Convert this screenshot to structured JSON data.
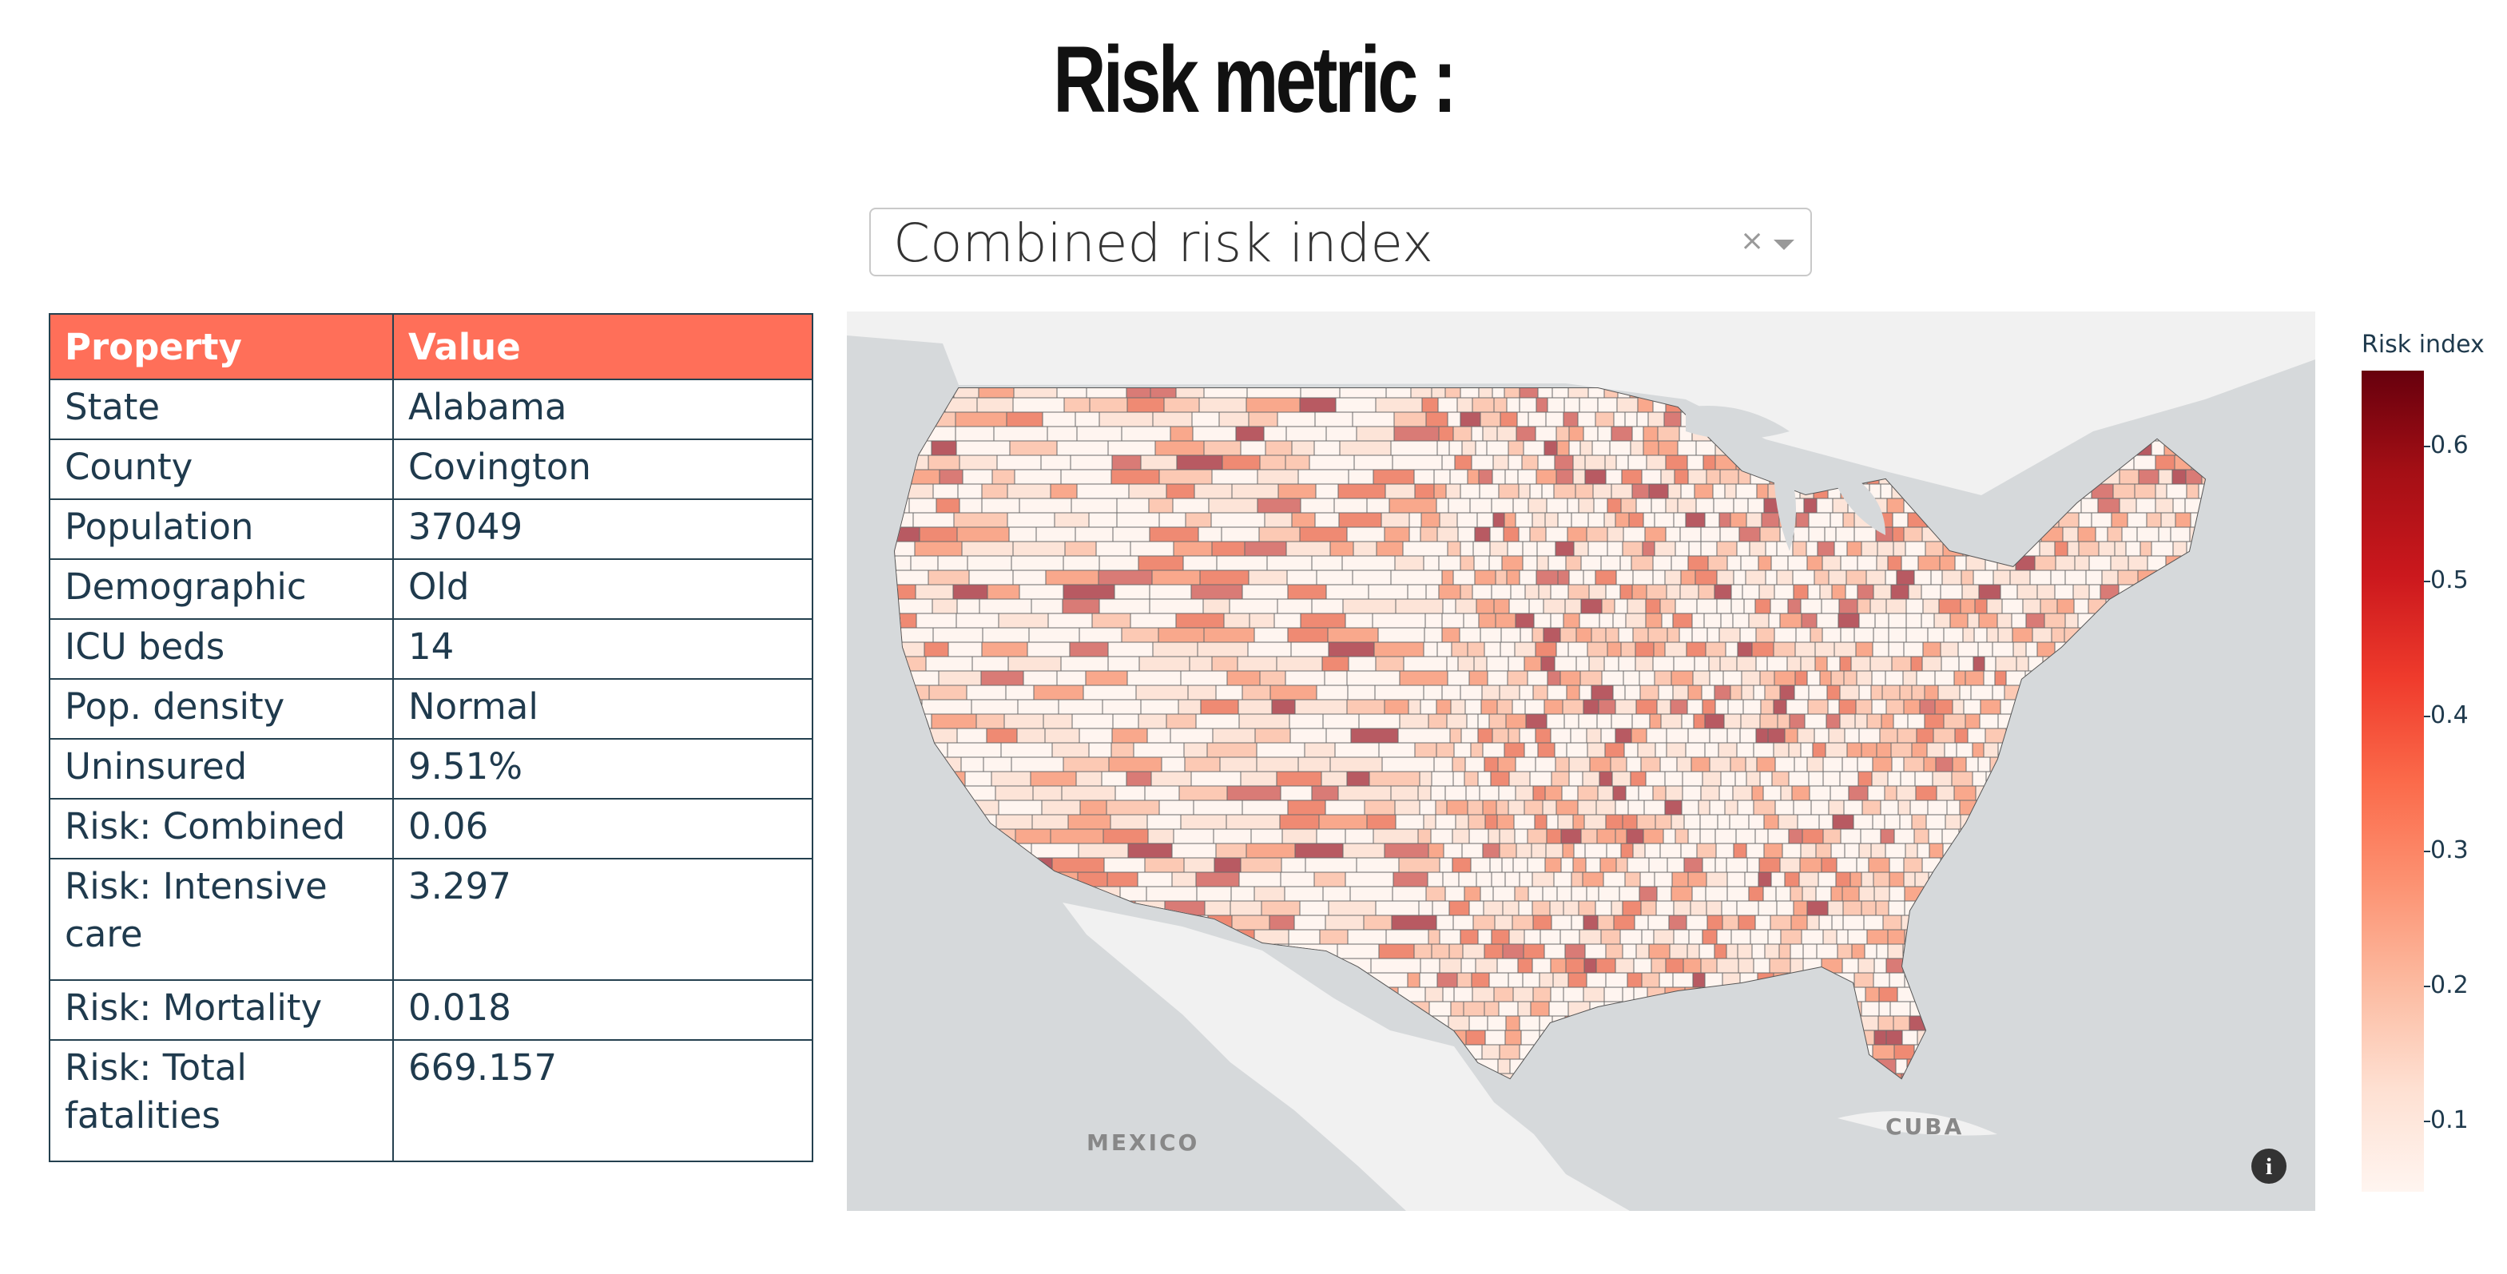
{
  "header": {
    "title": "Risk metric :"
  },
  "selector": {
    "value": "Combined risk index",
    "clear_icon": "clear-icon",
    "arrow_icon": "chevron-down-icon"
  },
  "table": {
    "headers": [
      "Property",
      "Value"
    ],
    "rows": [
      [
        "State",
        "Alabama"
      ],
      [
        "County",
        "Covington"
      ],
      [
        "Population",
        "37049"
      ],
      [
        "Demographic",
        "Old"
      ],
      [
        "ICU beds",
        "14"
      ],
      [
        "Pop. density",
        "Normal"
      ],
      [
        "Uninsured",
        "9.51%"
      ],
      [
        "Risk: Combined",
        "0.06"
      ],
      [
        "Risk: Intensive care",
        "3.297"
      ],
      [
        "Risk: Mortality",
        "0.018"
      ],
      [
        "Risk: Total fatalities",
        "669.157"
      ]
    ]
  },
  "map": {
    "labels": [
      "MEXICO",
      "CUBA"
    ],
    "info_icon": "info-icon",
    "colors": {
      "water": "#d6d9db",
      "land": "#f3f3f3",
      "accent_low": "#fff5f0",
      "accent_high": "#67000d"
    }
  },
  "legend": {
    "title": "Risk index",
    "ticks": [
      "0.6",
      "0.5",
      "0.4",
      "0.3",
      "0.2",
      "0.1"
    ]
  }
}
